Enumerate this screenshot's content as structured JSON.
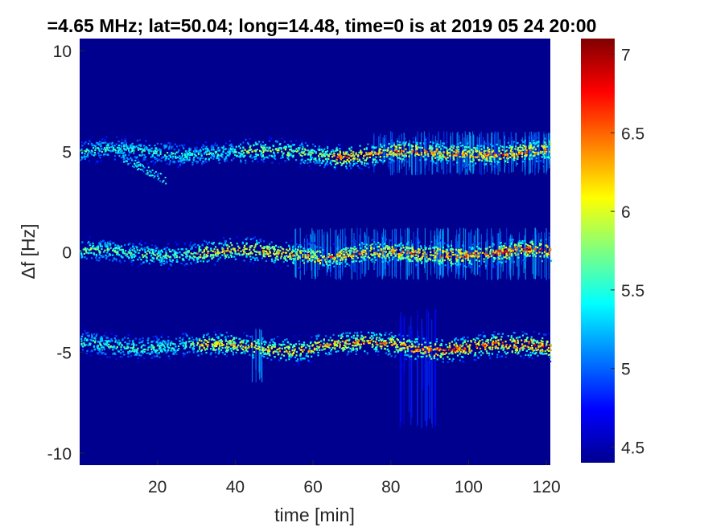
{
  "chart_data": {
    "type": "heatmap",
    "title": "=4.65 MHz;  lat=50.04; long=14.48, time=0 is at 2019 05 24 20:00",
    "xlabel": "time [min]",
    "ylabel": "Δf [Hz]",
    "xlim": [
      0,
      121
    ],
    "ylim": [
      -10.6,
      10.6
    ],
    "x_ticks": [
      20,
      40,
      60,
      80,
      100,
      120
    ],
    "y_ticks": [
      10,
      5,
      0,
      -5,
      -10
    ],
    "colormap": "jet",
    "colorbar": {
      "range": [
        4.4,
        7.1
      ],
      "ticks": [
        7,
        6.5,
        6,
        5.5,
        5,
        4.5
      ]
    },
    "background_value": 4.5,
    "traces": [
      {
        "segments": [
          {
            "t": [
              0,
              40
            ],
            "f": 5.0,
            "peak": 5.8
          },
          {
            "t": [
              40,
              65
            ],
            "f": 4.95,
            "peak": 6.2
          },
          {
            "t": [
              65,
              95
            ],
            "f": 4.9,
            "peak": 6.8
          },
          {
            "t": [
              95,
              121
            ],
            "f": 5.0,
            "peak": 6.9
          }
        ],
        "branch": {
          "t": [
            10,
            22
          ],
          "f": [
            4.8,
            3.6
          ],
          "peak": 5.6
        }
      },
      {
        "segments": [
          {
            "t": [
              0,
              30
            ],
            "f": 0.0,
            "peak": 6.0
          },
          {
            "t": [
              30,
              60
            ],
            "f": 0.0,
            "peak": 6.6
          },
          {
            "t": [
              60,
              90
            ],
            "f": -0.1,
            "peak": 6.8
          },
          {
            "t": [
              90,
              121
            ],
            "f": 0.0,
            "peak": 7.0
          }
        ]
      },
      {
        "segments": [
          {
            "t": [
              0,
              30
            ],
            "f": -4.6,
            "peak": 5.9
          },
          {
            "t": [
              30,
              60
            ],
            "f": -4.7,
            "peak": 6.6
          },
          {
            "t": [
              60,
              85
            ],
            "f": -4.6,
            "peak": 6.7
          },
          {
            "t": [
              85,
              121
            ],
            "f": -4.7,
            "peak": 7.0
          }
        ]
      }
    ],
    "vertical_bursts": [
      {
        "t": [
          44,
          47
        ],
        "f": [
          -6.5,
          -3.8
        ],
        "value": 5.4
      },
      {
        "t": [
          82,
          92
        ],
        "f": [
          -8.8,
          -2.8
        ],
        "value": 4.9
      },
      {
        "t": [
          75,
          121
        ],
        "f": [
          3.8,
          6.0
        ],
        "value": 5.3
      },
      {
        "t": [
          55,
          121
        ],
        "f": [
          -1.4,
          1.2
        ],
        "value": 5.3
      }
    ]
  }
}
